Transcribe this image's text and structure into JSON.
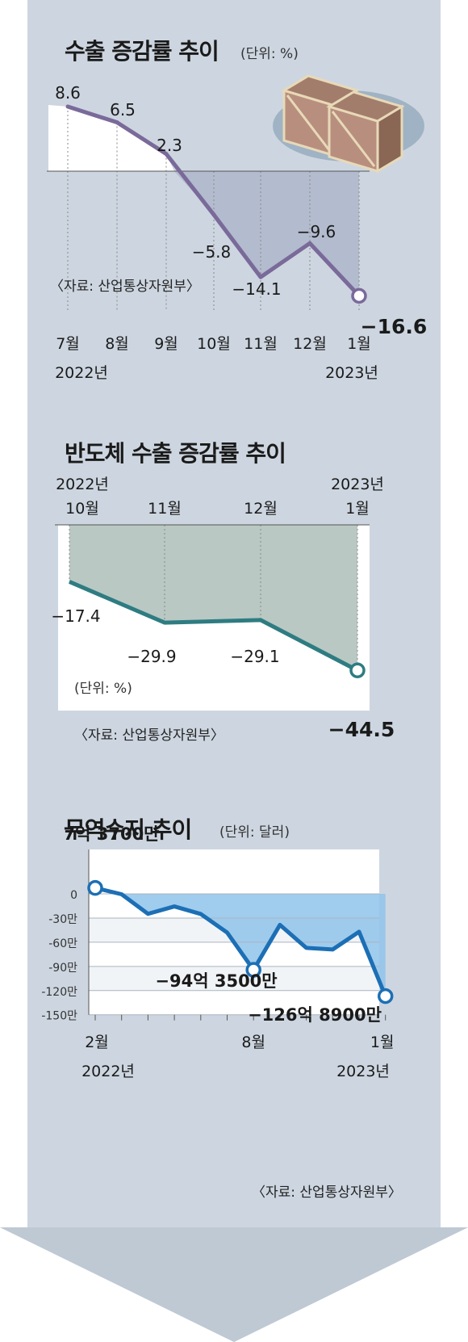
{
  "colors": {
    "arrow": "#cdd6e0",
    "line_export": "#7a6a9a",
    "line_semi": "#2e7c82",
    "line_trade": "#1c6fb5",
    "fill_export": "#a9b1c8",
    "fill_semi": "#b9c8c3",
    "fill_trade": "#8fc3ea"
  },
  "title_export": "수출 증감률 추이",
  "unit_export": "(단위: %)",
  "title_semi": "반도체 수출 증감률 추이",
  "unit_semi": "(단위: %)",
  "title_trade": "무역수지 추이",
  "unit_trade": "(단위: 달러)",
  "source_text": "〈자료: 산업통상자원부〉",
  "icon": "cargo-boxes-icon",
  "chart_data": [
    {
      "type": "line",
      "title": "수출 증감률 추이",
      "categories": [
        "7월",
        "8월",
        "9월",
        "10월",
        "11월",
        "12월",
        "1월"
      ],
      "year_labels": [
        "2022년",
        "2023년"
      ],
      "values": [
        8.6,
        6.5,
        2.3,
        -5.8,
        -14.1,
        -9.6,
        -16.6
      ],
      "value_labels": [
        "8.6",
        "6.5",
        "2.3",
        "−5.8",
        "−14.1",
        "−9.6",
        "−16.6"
      ],
      "ylim": [
        -18,
        10
      ]
    },
    {
      "type": "line",
      "title": "반도체 수출 증감률 추이",
      "categories": [
        "10월",
        "11월",
        "12월",
        "1월"
      ],
      "year_labels": [
        "2022년",
        "2023년"
      ],
      "values": [
        -17.4,
        -29.9,
        -29.1,
        -44.5
      ],
      "value_labels": [
        "−17.4",
        "−29.9",
        "−29.1",
        "−44.5"
      ],
      "ylim": [
        -50,
        0
      ]
    },
    {
      "type": "line",
      "title": "무역수지 추이",
      "x_labels": [
        "2월",
        "8월",
        "1월"
      ],
      "year_labels": [
        "2022년",
        "2023년"
      ],
      "values": [
        7.37,
        -0.5,
        -24.8,
        -15.6,
        -25.0,
        -48.0,
        -94.35,
        -38.5,
        -67.0,
        -69.0,
        -47.0,
        -126.89
      ],
      "yticks": [
        0,
        -30,
        -60,
        -90,
        -120,
        -150
      ],
      "ytick_labels": [
        "0",
        "-30만",
        "-60만",
        "-90만",
        "-120만",
        "-150만"
      ],
      "annotations": [
        "7억 3700만",
        "−94억 3500만",
        "−126억 8900만"
      ],
      "ylim": [
        -150,
        10
      ]
    }
  ]
}
